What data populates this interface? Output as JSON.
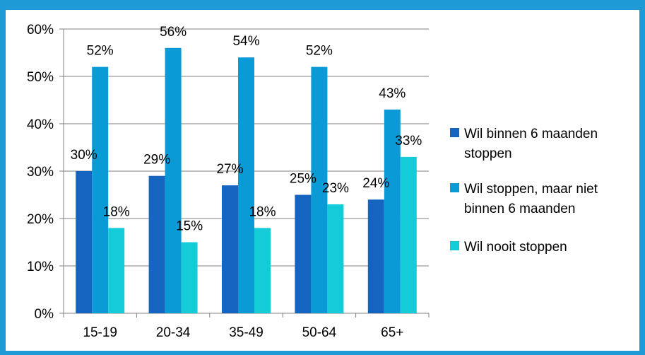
{
  "chart_data": {
    "type": "bar",
    "categories": [
      "15-19",
      "20-34",
      "35-49",
      "50-64",
      "65+"
    ],
    "series": [
      {
        "name": "Wil binnen 6 maanden stoppen",
        "legend_lines": [
          "Wil binnen 6 maanden",
          "stoppen"
        ],
        "color": "#1565c0",
        "values": [
          30,
          29,
          27,
          25,
          24
        ],
        "labels": [
          "30%",
          "29%",
          "27%",
          "25%",
          "24%"
        ]
      },
      {
        "name": "Wil stoppen, maar niet binnen 6 maanden",
        "legend_lines": [
          "Wil stoppen, maar niet",
          "binnen 6 maanden"
        ],
        "color": "#0a9ad6",
        "values": [
          52,
          56,
          54,
          52,
          43
        ],
        "labels": [
          "52%",
          "56%",
          "54%",
          "52%",
          "43%"
        ]
      },
      {
        "name": "Wil  nooit stoppen",
        "legend_lines": [
          "Wil  nooit stoppen"
        ],
        "color": "#13ccd8",
        "values": [
          18,
          15,
          18,
          23,
          33
        ],
        "labels": [
          "18%",
          "15%",
          "18%",
          "23%",
          "33%"
        ]
      }
    ],
    "y_ticks": [
      "0%",
      "10%",
      "20%",
      "30%",
      "40%",
      "50%",
      "60%"
    ],
    "ylim": [
      0,
      60
    ],
    "grid": true,
    "legend_position": "right"
  },
  "colors": {
    "frame": "#1e9ad6",
    "gridline": "#808080"
  }
}
